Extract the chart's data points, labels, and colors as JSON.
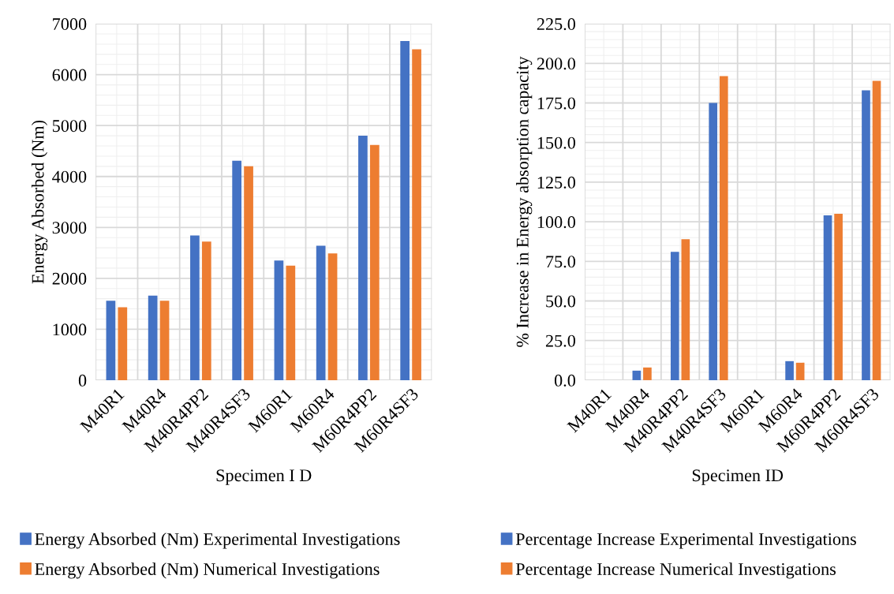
{
  "chart_data": [
    {
      "type": "bar",
      "xlabel": "Specimen I D",
      "ylabel": "Energy Absorbed (Nm)",
      "categories": [
        "M40R1",
        "M40R4",
        "M40R4PP2",
        "M40R4SF3",
        "M60R1",
        "M60R4",
        "M60R4PP2",
        "M60R4SF3"
      ],
      "series": [
        {
          "name": "Energy Absorbed (Nm) Experimental Investigations",
          "color": "#4472c4",
          "values": [
            1560,
            1660,
            2840,
            4310,
            2350,
            2640,
            4800,
            6660
          ]
        },
        {
          "name": "Energy Absorbed (Nm) Numerical Investigations",
          "color": "#ed7d31",
          "values": [
            1430,
            1560,
            2720,
            4200,
            2250,
            2490,
            4620,
            6500
          ]
        }
      ],
      "ylim": [
        0,
        7000
      ],
      "yticks": [
        0,
        1000,
        2000,
        3000,
        4000,
        5000,
        6000,
        7000
      ],
      "grid": true,
      "legend": "bottom"
    },
    {
      "type": "bar",
      "xlabel": "Specimen ID",
      "ylabel": "% Increase in Energy absorption capacity",
      "categories": [
        "M40R1",
        "M40R4",
        "M40R4PP2",
        "M40R4SF3",
        "M60R1",
        "M60R4",
        "M60R4PP2",
        "M60R4SF3"
      ],
      "series": [
        {
          "name": "Percentage Increase Experimental Investigations",
          "color": "#4472c4",
          "values": [
            0,
            6,
            81,
            175,
            0,
            12,
            104,
            183
          ]
        },
        {
          "name": "Percentage Increase Numerical Investigations",
          "color": "#ed7d31",
          "values": [
            0,
            8,
            89,
            192,
            0,
            11,
            105,
            189
          ]
        }
      ],
      "ylim": [
        0,
        225
      ],
      "yticks": [
        {
          "value": 0,
          "label": "0.0"
        },
        {
          "value": 25,
          "label": "25.0"
        },
        {
          "value": 50,
          "label": "50.0"
        },
        {
          "value": 75,
          "label": "75.0"
        },
        {
          "value": 100,
          "label": "100.0"
        },
        {
          "value": 125,
          "label": "125.0"
        },
        {
          "value": 150,
          "label": "150.0"
        },
        {
          "value": 175,
          "label": "175.0"
        },
        {
          "value": 200,
          "label": "200.0"
        },
        {
          "value": 225,
          "label": "225.0"
        }
      ],
      "grid": true,
      "legend": "bottom"
    }
  ]
}
